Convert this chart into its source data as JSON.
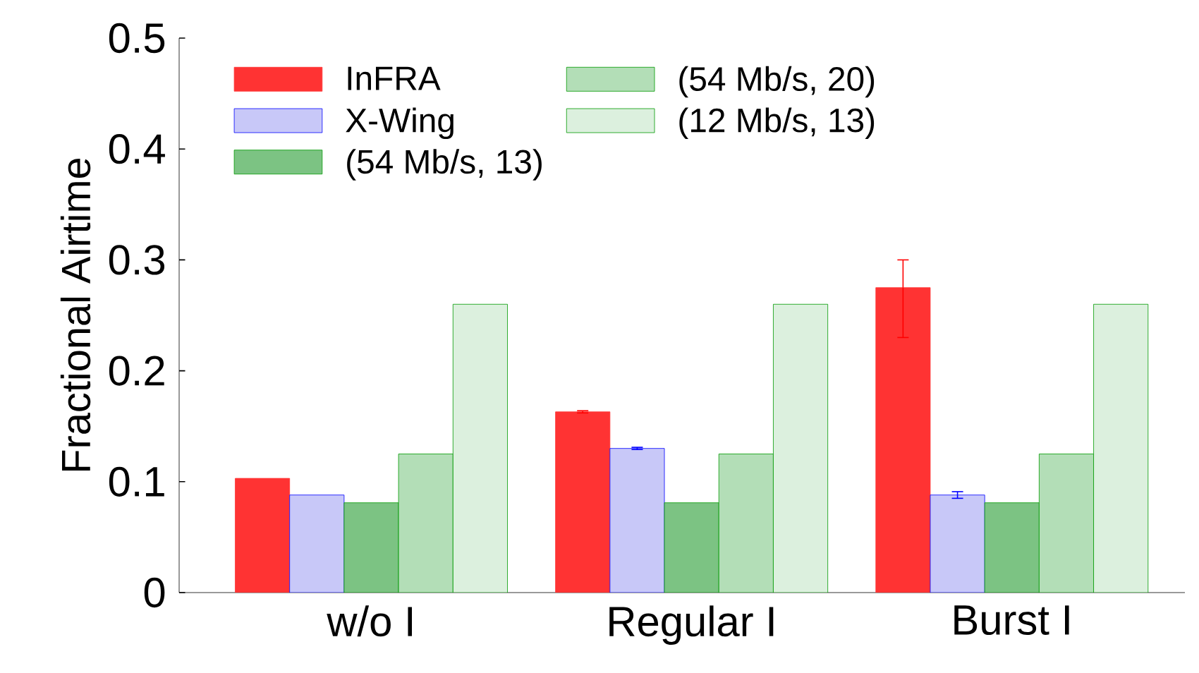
{
  "chart_data": {
    "type": "bar",
    "ylabel": "Fractional Airtime",
    "categories": [
      "w/o I",
      "Regular I",
      "Burst I"
    ],
    "series": [
      {
        "name": "InFRA",
        "color": "#ff3333",
        "values": [
          0.103,
          0.163,
          0.275
        ],
        "errors": [
          null,
          0.001,
          [
            0.23,
            0.3
          ]
        ]
      },
      {
        "name": "X-Wing",
        "color": "#c8c8f8",
        "values": [
          0.088,
          0.13,
          0.088
        ],
        "errors": [
          null,
          0.001,
          0.003
        ]
      },
      {
        "name": "(54 Mb/s, 13)",
        "color": "#7cc383",
        "values": [
          0.081,
          0.081,
          0.081
        ]
      },
      {
        "name": "(54 Mb/s, 20)",
        "color": "#b3deb7",
        "values": [
          0.125,
          0.125,
          0.125
        ]
      },
      {
        "name": "(12 Mb/s, 13)",
        "color": "#dcf0de",
        "values": [
          0.26,
          0.26,
          0.26
        ]
      }
    ],
    "ylim": [
      0,
      0.5
    ],
    "yticks": [
      0,
      0.1,
      0.2,
      0.3,
      0.4,
      0.5
    ],
    "legend": "top"
  }
}
